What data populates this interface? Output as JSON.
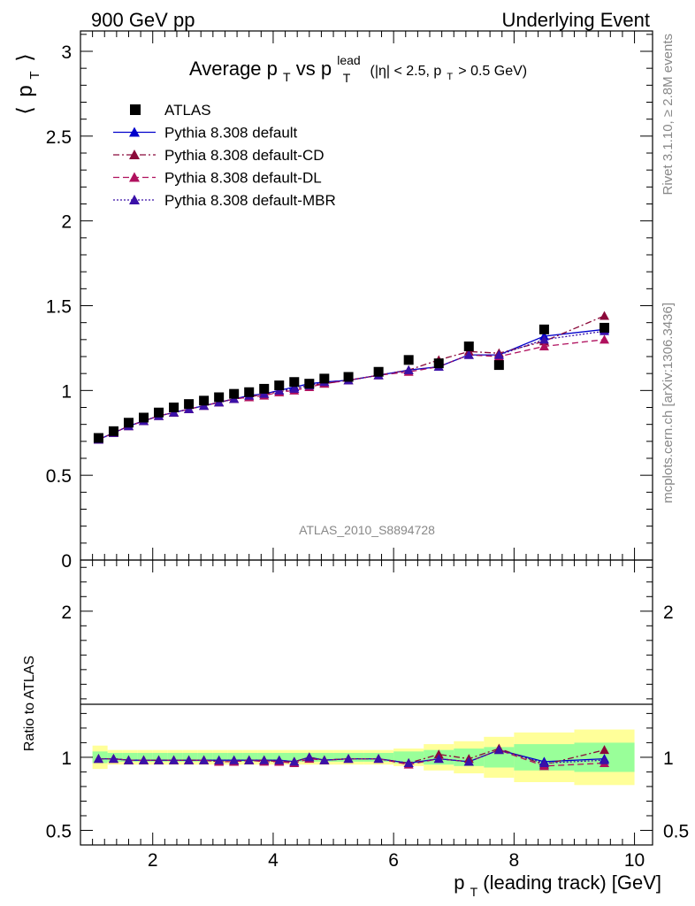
{
  "header": {
    "left": "900 GeV pp",
    "right": "Underlying Event"
  },
  "side_labels": {
    "rivet": "Rivet 3.1.10, ≥ 2.8M events",
    "mcplots": "mcplots.cern.ch [arXiv:1306.3436]"
  },
  "chart_data": [
    {
      "type": "scatter",
      "panel": "main",
      "title_parts": {
        "pre": "Average p",
        "sub1": "T",
        "mid": " vs p",
        "sup2": "lead",
        "sub2": "T",
        "cut1": "(|η| < 2.5, p",
        "cut_sub": "T",
        "cut2": " > 0.5 GeV)"
      },
      "ylabel": "⟨ p_T ⟩",
      "ylabel_parts": {
        "open": "⟨",
        "p": "p",
        "sub": "T",
        "close": "⟩"
      },
      "watermark": "ATLAS_2010_S8894728",
      "xlim": [
        0.8,
        10.3
      ],
      "ylim": [
        0,
        3.12
      ],
      "y_ticks": [
        0,
        0.5,
        1,
        1.5,
        2,
        2.5,
        3
      ],
      "y_tick_labels": [
        "0",
        "0.5",
        "1",
        "1.5",
        "2",
        "2.5",
        "3"
      ],
      "legend_position": "top-left",
      "legend": [
        {
          "label": "ATLAS",
          "style": "data"
        },
        {
          "label": "Pythia 8.308 default",
          "style": "solid",
          "color": "#0000cc"
        },
        {
          "label": "Pythia 8.308 default-CD",
          "style": "dashdot",
          "color": "#8b0a3a"
        },
        {
          "label": "Pythia 8.308 default-DL",
          "style": "dash",
          "color": "#b0105e"
        },
        {
          "label": "Pythia 8.308 default-MBR",
          "style": "dot",
          "color": "#3a10a8"
        }
      ],
      "x": [
        1.1,
        1.35,
        1.6,
        1.85,
        2.1,
        2.35,
        2.6,
        2.85,
        3.1,
        3.35,
        3.6,
        3.85,
        4.1,
        4.35,
        4.6,
        4.85,
        5.25,
        5.75,
        6.25,
        6.75,
        7.25,
        7.75,
        8.5,
        9.5
      ],
      "series": [
        {
          "name": "ATLAS",
          "values": [
            0.72,
            0.76,
            0.81,
            0.84,
            0.87,
            0.9,
            0.92,
            0.94,
            0.96,
            0.98,
            0.99,
            1.01,
            1.03,
            1.05,
            1.04,
            1.07,
            1.08,
            1.11,
            1.18,
            1.16,
            1.26,
            1.15,
            1.36,
            1.37
          ]
        },
        {
          "name": "Pythia 8.308 default",
          "values": [
            0.71,
            0.75,
            0.79,
            0.82,
            0.85,
            0.87,
            0.89,
            0.91,
            0.93,
            0.95,
            0.97,
            0.98,
            1.0,
            1.02,
            1.04,
            1.05,
            1.06,
            1.09,
            1.12,
            1.14,
            1.21,
            1.21,
            1.32,
            1.36
          ]
        },
        {
          "name": "Pythia 8.308 default-CD",
          "values": [
            0.71,
            0.75,
            0.79,
            0.82,
            0.85,
            0.87,
            0.89,
            0.91,
            0.93,
            0.95,
            0.96,
            0.98,
            0.99,
            1.01,
            1.03,
            1.04,
            1.06,
            1.09,
            1.12,
            1.18,
            1.23,
            1.22,
            1.29,
            1.44
          ]
        },
        {
          "name": "Pythia 8.308 default-DL",
          "values": [
            0.71,
            0.75,
            0.79,
            0.82,
            0.85,
            0.87,
            0.89,
            0.91,
            0.93,
            0.95,
            0.96,
            0.97,
            0.99,
            1.0,
            1.02,
            1.04,
            1.06,
            1.09,
            1.11,
            1.14,
            1.21,
            1.2,
            1.26,
            1.3
          ]
        },
        {
          "name": "Pythia 8.308 default-MBR",
          "values": [
            0.71,
            0.75,
            0.79,
            0.82,
            0.85,
            0.87,
            0.89,
            0.91,
            0.93,
            0.95,
            0.97,
            0.98,
            1.0,
            1.01,
            1.03,
            1.05,
            1.06,
            1.09,
            1.12,
            1.14,
            1.21,
            1.21,
            1.3,
            1.35
          ]
        }
      ]
    },
    {
      "type": "scatter",
      "panel": "ratio",
      "ylabel": "Ratio to ATLAS",
      "xlabel": "p_T (leading track) [GeV]",
      "xlabel_parts": {
        "p": "p",
        "sub": "T",
        "rest": " (leading track) [GeV]"
      },
      "xlim": [
        0.8,
        10.3
      ],
      "x_ticks": [
        2,
        4,
        6,
        8,
        10
      ],
      "x_tick_labels": [
        "2",
        "4",
        "6",
        "8",
        "10"
      ],
      "ylim": [
        0.4,
        2.35
      ],
      "y_ticks": [
        0.5,
        1,
        2
      ],
      "y_tick_labels": [
        "0.5",
        "1",
        "2"
      ],
      "reference_line": 1,
      "uncertainty_bands": {
        "bin_edges": [
          1.0,
          1.25,
          1.5,
          1.75,
          2.0,
          2.25,
          2.5,
          2.75,
          3.0,
          3.25,
          3.5,
          3.75,
          4.0,
          4.25,
          4.5,
          4.75,
          5.0,
          5.5,
          6.0,
          6.5,
          7.0,
          7.5,
          8.0,
          9.0,
          10.0
        ],
        "inner": [
          0.04,
          0.03,
          0.03,
          0.03,
          0.03,
          0.03,
          0.03,
          0.03,
          0.03,
          0.03,
          0.03,
          0.03,
          0.03,
          0.03,
          0.03,
          0.03,
          0.03,
          0.03,
          0.04,
          0.05,
          0.06,
          0.07,
          0.09,
          0.1
        ],
        "outer": [
          0.08,
          0.05,
          0.05,
          0.05,
          0.05,
          0.05,
          0.05,
          0.05,
          0.05,
          0.05,
          0.05,
          0.05,
          0.05,
          0.05,
          0.05,
          0.05,
          0.05,
          0.05,
          0.06,
          0.09,
          0.11,
          0.14,
          0.17,
          0.19
        ],
        "inner_color": "#99ff99",
        "outer_color": "#ffff99"
      },
      "x": [
        1.1,
        1.35,
        1.6,
        1.85,
        2.1,
        2.35,
        2.6,
        2.85,
        3.1,
        3.35,
        3.6,
        3.85,
        4.1,
        4.35,
        4.6,
        4.85,
        5.25,
        5.75,
        6.25,
        6.75,
        7.25,
        7.75,
        8.5,
        9.5
      ],
      "series": [
        {
          "name": "Pythia 8.308 default",
          "values": [
            0.99,
            0.99,
            0.98,
            0.98,
            0.98,
            0.98,
            0.98,
            0.98,
            0.98,
            0.98,
            0.98,
            0.98,
            0.98,
            0.97,
            1.0,
            0.98,
            0.99,
            0.99,
            0.96,
            0.99,
            0.97,
            1.05,
            0.97,
            0.99
          ]
        },
        {
          "name": "Pythia 8.308 default-CD",
          "values": [
            0.99,
            0.99,
            0.98,
            0.98,
            0.98,
            0.98,
            0.98,
            0.98,
            0.97,
            0.97,
            0.98,
            0.98,
            0.97,
            0.97,
            1.0,
            0.98,
            0.99,
            0.99,
            0.96,
            1.02,
            0.99,
            1.06,
            0.95,
            1.05
          ]
        },
        {
          "name": "Pythia 8.308 default-DL",
          "values": [
            0.99,
            0.99,
            0.98,
            0.98,
            0.98,
            0.98,
            0.98,
            0.98,
            0.97,
            0.97,
            0.98,
            0.97,
            0.97,
            0.96,
            0.99,
            0.98,
            0.99,
            0.99,
            0.95,
            0.99,
            0.97,
            1.05,
            0.94,
            0.96
          ]
        },
        {
          "name": "Pythia 8.308 default-MBR",
          "values": [
            0.99,
            0.99,
            0.98,
            0.98,
            0.98,
            0.98,
            0.98,
            0.98,
            0.98,
            0.98,
            0.98,
            0.98,
            0.98,
            0.97,
            1.0,
            0.98,
            0.99,
            0.99,
            0.96,
            0.99,
            0.97,
            1.05,
            0.96,
            0.98
          ]
        }
      ]
    }
  ]
}
